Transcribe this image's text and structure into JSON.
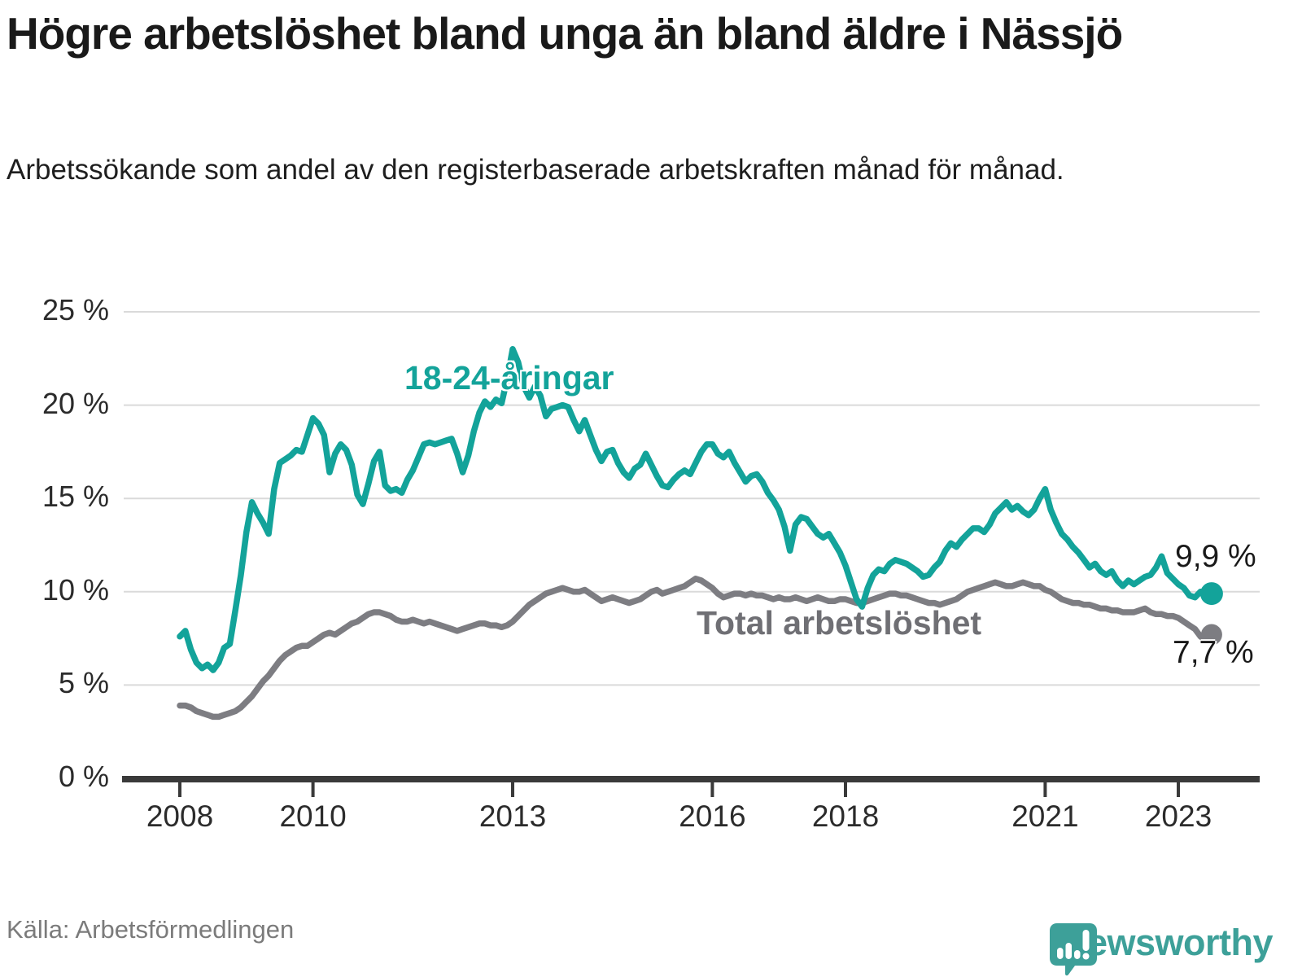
{
  "header": {
    "title": "Högre arbetslöshet bland unga än bland äldre i Nässjö",
    "subtitle": "Arbetssökande som andel av den registerbaserade arbetskraften månad för månad."
  },
  "footer": {
    "source": "Källa: Arbetsförmedlingen",
    "brand": "Newsworthy"
  },
  "colors": {
    "youth_line": "#13a39a",
    "total_line": "#7d7d82",
    "total_label_text": "#6f6f74",
    "value_label_text": "#191919",
    "grid": "#dadada",
    "axis": "#3a3a3a",
    "tick_text": "#2b2b2b",
    "brand_teal": "#3da099"
  },
  "chart_data": {
    "type": "line",
    "title": "Högre arbetslöshet bland unga än bland äldre i Nässjö",
    "subtitle": "Arbetssökande som andel av den registerbaserade arbetskraften månad för månad.",
    "grid": "horizontal",
    "legend_position": "inline-labels-on-chart",
    "ylim": [
      0,
      25
    ],
    "x": {
      "start": "2008-01",
      "end": "2023-07",
      "interval": "month"
    },
    "y_axis": {
      "ticks": [
        {
          "value": 0,
          "label": "0 %"
        },
        {
          "value": 5,
          "label": "5 %"
        },
        {
          "value": 10,
          "label": "10 %"
        },
        {
          "value": 15,
          "label": "15 %"
        },
        {
          "value": 20,
          "label": "20 %"
        },
        {
          "value": 25,
          "label": "25 %"
        }
      ]
    },
    "x_axis": {
      "ticks": [
        {
          "year": 2008,
          "label": "2008"
        },
        {
          "year": 2010,
          "label": "2010"
        },
        {
          "year": 2013,
          "label": "2013"
        },
        {
          "year": 2016,
          "label": "2016"
        },
        {
          "year": 2018,
          "label": "2018"
        },
        {
          "year": 2021,
          "label": "2021"
        },
        {
          "year": 2023,
          "label": "2023"
        }
      ]
    },
    "series": [
      {
        "name": "18-24-åringar",
        "color": "#13a39a",
        "end_label": "9,9 %",
        "end_value": 9.9,
        "values": [
          7.6,
          7.9,
          6.9,
          6.2,
          5.9,
          6.1,
          5.8,
          6.2,
          7.0,
          7.2,
          9.0,
          10.9,
          13.2,
          14.8,
          14.2,
          13.7,
          13.1,
          15.5,
          16.9,
          17.1,
          17.3,
          17.6,
          17.5,
          18.4,
          19.3,
          19.0,
          18.4,
          16.4,
          17.4,
          17.9,
          17.6,
          16.8,
          15.2,
          14.7,
          15.8,
          17.0,
          17.5,
          15.7,
          15.4,
          15.5,
          15.3,
          16.0,
          16.5,
          17.2,
          17.9,
          18.0,
          17.9,
          18.0,
          18.1,
          18.2,
          17.4,
          16.4,
          17.3,
          18.6,
          19.6,
          20.2,
          19.9,
          20.3,
          20.1,
          21.4,
          23.0,
          22.3,
          21.0,
          20.4,
          21.0,
          20.5,
          19.4,
          19.8,
          19.9,
          20.0,
          19.9,
          19.2,
          18.6,
          19.2,
          18.4,
          17.6,
          17.0,
          17.5,
          17.6,
          16.9,
          16.4,
          16.1,
          16.6,
          16.8,
          17.4,
          16.8,
          16.2,
          15.7,
          15.6,
          16.0,
          16.3,
          16.5,
          16.3,
          16.9,
          17.5,
          17.9,
          17.9,
          17.4,
          17.2,
          17.5,
          16.9,
          16.4,
          15.9,
          16.2,
          16.3,
          15.9,
          15.3,
          14.9,
          14.4,
          13.5,
          12.2,
          13.6,
          14.0,
          13.9,
          13.5,
          13.1,
          12.9,
          13.1,
          12.6,
          12.1,
          11.4,
          10.5,
          9.6,
          9.2,
          10.2,
          10.9,
          11.2,
          11.1,
          11.5,
          11.7,
          11.6,
          11.5,
          11.3,
          11.1,
          10.8,
          10.9,
          11.3,
          11.6,
          12.2,
          12.6,
          12.4,
          12.8,
          13.1,
          13.4,
          13.4,
          13.2,
          13.6,
          14.2,
          14.5,
          14.8,
          14.4,
          14.6,
          14.3,
          14.1,
          14.4,
          15.0,
          15.5,
          14.4,
          13.7,
          13.1,
          12.8,
          12.4,
          12.1,
          11.7,
          11.3,
          11.5,
          11.1,
          10.9,
          11.1,
          10.6,
          10.3,
          10.6,
          10.4,
          10.6,
          10.8,
          10.9,
          11.3,
          11.9,
          11.0,
          10.7,
          10.4,
          10.2,
          9.8,
          9.7,
          10.0,
          10.0,
          9.9
        ]
      },
      {
        "name": "Total arbetslöshet",
        "color": "#7d7d82",
        "end_label": "7,7 %",
        "end_value": 7.7,
        "values": [
          3.9,
          3.9,
          3.8,
          3.6,
          3.5,
          3.4,
          3.3,
          3.3,
          3.4,
          3.5,
          3.6,
          3.8,
          4.1,
          4.4,
          4.8,
          5.2,
          5.5,
          5.9,
          6.3,
          6.6,
          6.8,
          7.0,
          7.1,
          7.1,
          7.3,
          7.5,
          7.7,
          7.8,
          7.7,
          7.9,
          8.1,
          8.3,
          8.4,
          8.6,
          8.8,
          8.9,
          8.9,
          8.8,
          8.7,
          8.5,
          8.4,
          8.4,
          8.5,
          8.4,
          8.3,
          8.4,
          8.3,
          8.2,
          8.1,
          8.0,
          7.9,
          8.0,
          8.1,
          8.2,
          8.3,
          8.3,
          8.2,
          8.2,
          8.1,
          8.2,
          8.4,
          8.7,
          9.0,
          9.3,
          9.5,
          9.7,
          9.9,
          10.0,
          10.1,
          10.2,
          10.1,
          10.0,
          10.0,
          10.1,
          9.9,
          9.7,
          9.5,
          9.6,
          9.7,
          9.6,
          9.5,
          9.4,
          9.5,
          9.6,
          9.8,
          10.0,
          10.1,
          9.9,
          10.0,
          10.1,
          10.2,
          10.3,
          10.5,
          10.7,
          10.6,
          10.4,
          10.2,
          9.9,
          9.7,
          9.8,
          9.9,
          9.9,
          9.8,
          9.9,
          9.8,
          9.8,
          9.7,
          9.6,
          9.7,
          9.6,
          9.6,
          9.7,
          9.6,
          9.5,
          9.6,
          9.7,
          9.6,
          9.5,
          9.5,
          9.6,
          9.6,
          9.5,
          9.4,
          9.4,
          9.5,
          9.6,
          9.7,
          9.8,
          9.9,
          9.9,
          9.8,
          9.8,
          9.7,
          9.6,
          9.5,
          9.4,
          9.4,
          9.3,
          9.4,
          9.5,
          9.6,
          9.8,
          10.0,
          10.1,
          10.2,
          10.3,
          10.4,
          10.5,
          10.4,
          10.3,
          10.3,
          10.4,
          10.5,
          10.4,
          10.3,
          10.3,
          10.1,
          10.0,
          9.8,
          9.6,
          9.5,
          9.4,
          9.4,
          9.3,
          9.3,
          9.2,
          9.1,
          9.1,
          9.0,
          9.0,
          8.9,
          8.9,
          8.9,
          9.0,
          9.1,
          8.9,
          8.8,
          8.8,
          8.7,
          8.7,
          8.6,
          8.4,
          8.2,
          8.0,
          7.6,
          7.4,
          7.7
        ]
      }
    ]
  }
}
